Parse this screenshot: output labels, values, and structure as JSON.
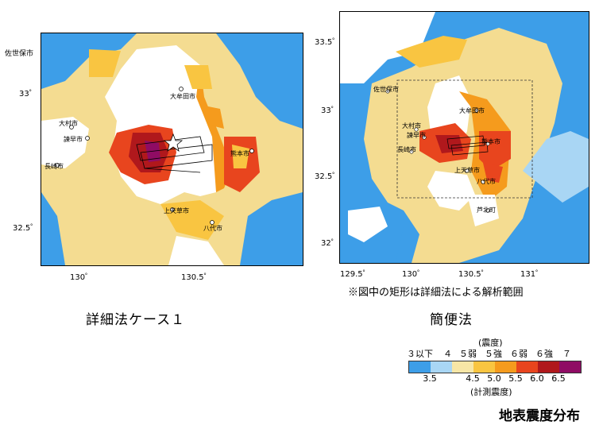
{
  "left_map": {
    "corner_label": "佐世保市",
    "lat_ticks": [
      "33゜",
      "32.5゜"
    ],
    "lon_ticks": [
      "130゜",
      "130.5゜"
    ],
    "cities": [
      "大牟田市",
      "大村市",
      "諫早市",
      "長崎市",
      "熊本市",
      "上天草市",
      "八代市"
    ],
    "caption": "詳細法ケース１"
  },
  "right_map": {
    "lat_ticks": [
      "33.5゜",
      "33゜",
      "32.5゜",
      "32゜"
    ],
    "lon_ticks": [
      "129.5゜",
      "130゜",
      "130.5゜",
      "131゜"
    ],
    "cities": [
      "佐世保市",
      "大牟田市",
      "大村市",
      "諫早市",
      "長崎市",
      "熊本市",
      "上天草市",
      "八代市",
      "芦北町"
    ],
    "note": "※図中の矩形は詳細法による解析範囲",
    "caption": "簡便法"
  },
  "legend": {
    "title_top": "(震度)",
    "intensity_labels": [
      "３以下",
      "４",
      "５弱",
      "５強",
      "６弱",
      "６強",
      "７"
    ],
    "scale_ticks": [
      "3.5",
      "4.5",
      "5.0",
      "5.5",
      "6.0",
      "6.5"
    ],
    "title_bottom": "(計測震度)",
    "colors": [
      "#3d9ee8",
      "#a9d6f4",
      "#f7e6a6",
      "#f9c541",
      "#f59b1d",
      "#e8451e",
      "#b0181c",
      "#8f0c64"
    ]
  },
  "figure_title": "地表震度分布"
}
